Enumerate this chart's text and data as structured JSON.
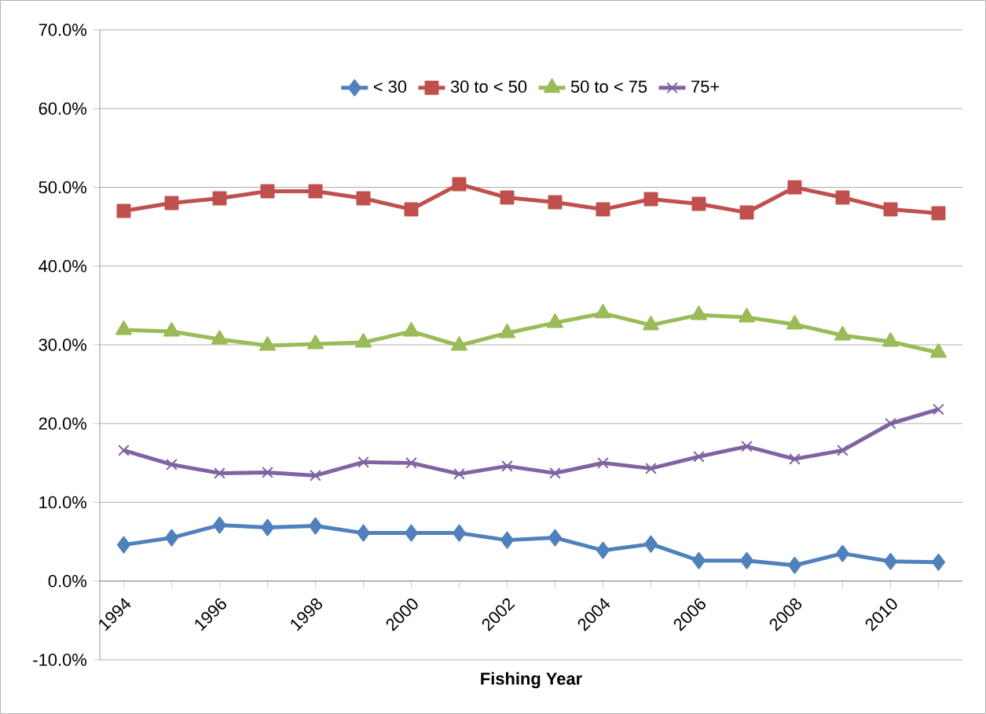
{
  "chart_data": {
    "type": "line",
    "xlabel": "Fishing Year",
    "categories": [
      "1994",
      null,
      "1996",
      null,
      "1998",
      null,
      "2000",
      null,
      "2002",
      null,
      "2004",
      null,
      "2006",
      null,
      "2008",
      null,
      "2010",
      null
    ],
    "series": [
      {
        "name": "< 30",
        "color": "#4f81bd",
        "marker": "diamond",
        "values": [
          4.6,
          5.5,
          7.1,
          6.8,
          7.0,
          6.1,
          6.1,
          6.1,
          5.2,
          5.5,
          3.9,
          4.7,
          2.6,
          2.6,
          2.0,
          3.5,
          2.5,
          2.4
        ]
      },
      {
        "name": "30 to < 50",
        "color": "#c0504d",
        "marker": "square",
        "values": [
          47.0,
          48.0,
          48.6,
          49.5,
          49.5,
          48.6,
          47.2,
          50.4,
          48.7,
          48.1,
          47.2,
          48.5,
          47.9,
          46.8,
          50.0,
          48.7,
          47.2,
          46.7
        ]
      },
      {
        "name": "50 to < 75",
        "color": "#9bbb59",
        "marker": "triangle",
        "values": [
          31.9,
          31.7,
          30.7,
          29.9,
          30.1,
          30.3,
          31.7,
          29.9,
          31.5,
          32.8,
          34.0,
          32.5,
          33.8,
          33.5,
          32.6,
          31.2,
          30.4,
          29.0
        ]
      },
      {
        "name": "75+",
        "color": "#8064a2",
        "marker": "cross",
        "values": [
          16.6,
          14.8,
          13.7,
          13.8,
          13.4,
          15.1,
          15.0,
          13.6,
          14.6,
          13.7,
          15.0,
          14.3,
          15.8,
          17.1,
          15.5,
          16.6,
          20.0,
          21.8
        ]
      }
    ],
    "ylim": [
      -10,
      70
    ],
    "yticks": [
      {
        "value": -10,
        "label": "-10.0%"
      },
      {
        "value": 0,
        "label": "0.0%"
      },
      {
        "value": 10,
        "label": "10.0%"
      },
      {
        "value": 20,
        "label": "20.0%"
      },
      {
        "value": 30,
        "label": "30.0%"
      },
      {
        "value": 40,
        "label": "40.0%"
      },
      {
        "value": 50,
        "label": "50.0%"
      },
      {
        "value": 60,
        "label": "60.0%"
      },
      {
        "value": 70,
        "label": "70.0%"
      }
    ],
    "grid": "y",
    "legend": "top",
    "line_style": "solid"
  }
}
